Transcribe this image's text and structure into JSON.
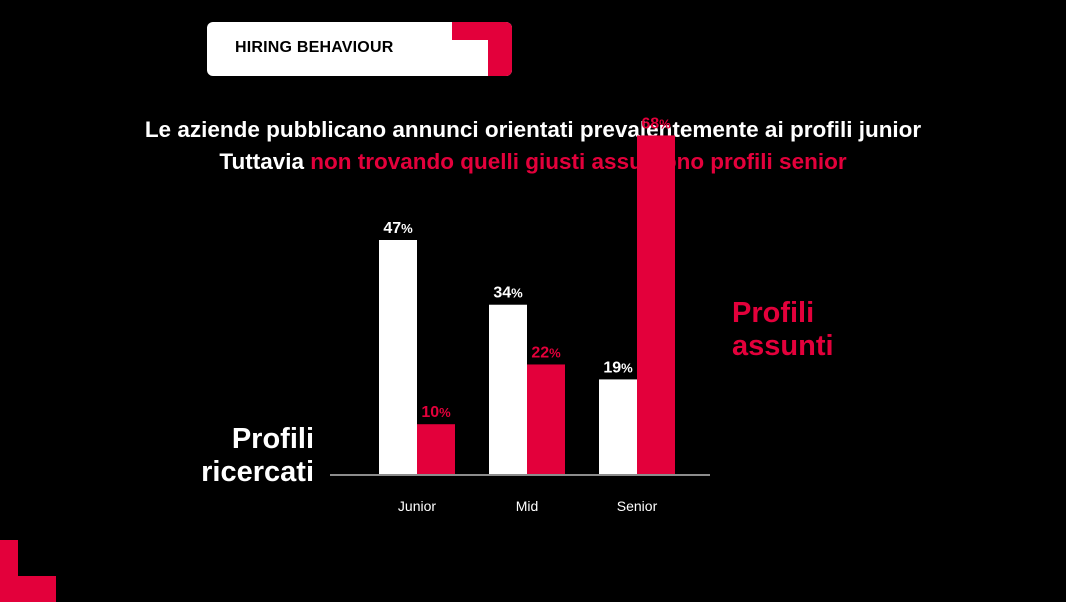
{
  "header": {
    "badge_label": "HIRING BEHAVIOUR"
  },
  "headline": {
    "line1": "Le aziende pubblicano annunci orientati prevalentemente ai profili junior",
    "line2_white": "Tuttavia",
    "line2_accent": "non trovando quelli giusti assumono profili senior"
  },
  "labels": {
    "left_series": "Profili ricercati",
    "right_series": "Profili assunti"
  },
  "colors": {
    "accent": "#e3003b",
    "white_bar": "#ffffff",
    "background": "#000000"
  },
  "chart_data": {
    "type": "bar",
    "categories": [
      "Junior",
      "Mid",
      "Senior"
    ],
    "series": [
      {
        "name": "Profili ricercati",
        "values": [
          47,
          34,
          19
        ],
        "color": "#ffffff"
      },
      {
        "name": "Profili assunti",
        "values": [
          10,
          22,
          68
        ],
        "color": "#e3003b"
      }
    ],
    "value_suffix": "%",
    "ylim": [
      0,
      70
    ]
  }
}
